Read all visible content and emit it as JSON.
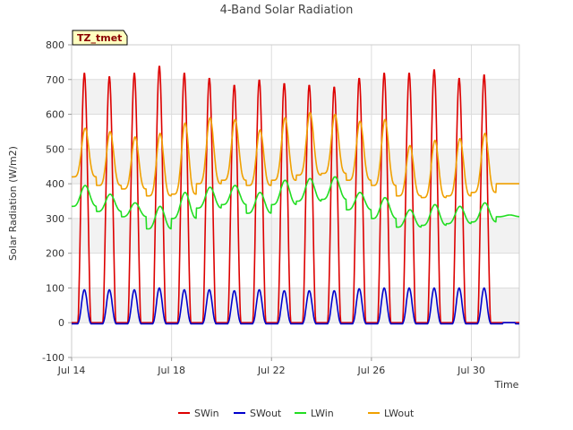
{
  "chart_data": {
    "type": "line",
    "title": "4-Band Solar Radiation",
    "xlabel": "Time",
    "ylabel": "Solar Radiation (W/m2)",
    "ylim": [
      -100,
      800
    ],
    "yticks": [
      -100,
      0,
      100,
      200,
      300,
      400,
      500,
      600,
      700,
      800
    ],
    "xlim": [
      "2024-07-14",
      "2024-07-31 22:00"
    ],
    "xticks": [
      {
        "date": "2024-07-14",
        "label": "Jul 14"
      },
      {
        "date": "2024-07-18",
        "label": "Jul 18"
      },
      {
        "date": "2024-07-22",
        "label": "Jul 22"
      },
      {
        "date": "2024-07-26",
        "label": "Jul 26"
      },
      {
        "date": "2024-07-30",
        "label": "Jul 30"
      }
    ],
    "grid": true,
    "legend_position": "bottom",
    "annotation": "TZ_tmet",
    "days": [
      "2024-07-14",
      "2024-07-15",
      "2024-07-16",
      "2024-07-17",
      "2024-07-18",
      "2024-07-19",
      "2024-07-20",
      "2024-07-21",
      "2024-07-22",
      "2024-07-23",
      "2024-07-24",
      "2024-07-25",
      "2024-07-26",
      "2024-07-27",
      "2024-07-28",
      "2024-07-29",
      "2024-07-30",
      "2024-07-31"
    ],
    "series": [
      {
        "name": "SWin",
        "color": "#dd0000",
        "daily_peak": [
          720,
          710,
          720,
          740,
          720,
          705,
          685,
          700,
          690,
          685,
          680,
          705,
          720,
          720,
          730,
          705,
          715,
          0
        ],
        "night": 0
      },
      {
        "name": "SWout",
        "color": "#0000cc",
        "daily_peak": [
          95,
          95,
          95,
          100,
          95,
          95,
          92,
          95,
          92,
          92,
          92,
          98,
          100,
          100,
          100,
          100,
          100,
          0
        ],
        "night": -3
      },
      {
        "name": "LWin",
        "color": "#22dd22",
        "daily_peak": [
          395,
          370,
          345,
          335,
          375,
          390,
          395,
          375,
          410,
          415,
          420,
          375,
          360,
          325,
          340,
          335,
          345,
          310
        ],
        "daily_low": [
          335,
          320,
          305,
          270,
          300,
          330,
          340,
          315,
          340,
          350,
          355,
          325,
          300,
          275,
          280,
          285,
          290,
          305
        ]
      },
      {
        "name": "LWout",
        "color": "#f0a000",
        "daily_peak": [
          560,
          550,
          535,
          545,
          575,
          590,
          585,
          555,
          590,
          605,
          600,
          580,
          585,
          510,
          525,
          530,
          545,
          400
        ],
        "daily_low": [
          420,
          395,
          385,
          365,
          370,
          400,
          410,
          395,
          410,
          425,
          430,
          410,
          395,
          365,
          360,
          365,
          375,
          400
        ]
      }
    ]
  }
}
